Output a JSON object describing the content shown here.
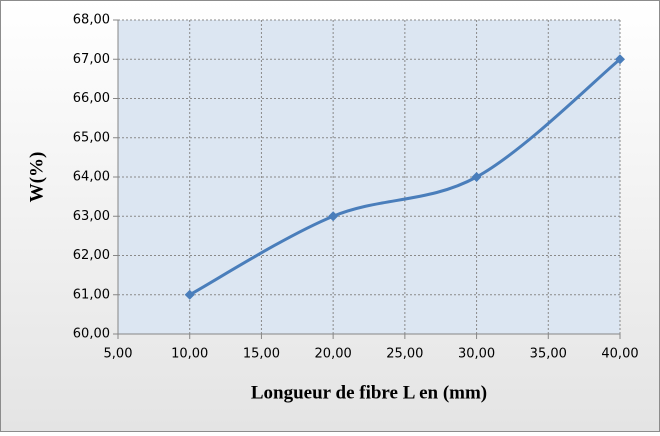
{
  "chart_data": {
    "type": "line",
    "smooth": true,
    "grid": true,
    "x_label": "Longueur de fibre L en  (mm)",
    "y_label": "W(%)",
    "x": [
      10,
      20,
      30,
      40
    ],
    "values": [
      61,
      63,
      64,
      67
    ],
    "color": "#4a7ebb",
    "xlim": [
      5,
      40
    ],
    "xticks": [
      {
        "value": 5,
        "label": "5,00"
      },
      {
        "value": 10,
        "label": "10,00"
      },
      {
        "value": 15,
        "label": "15,00"
      },
      {
        "value": 20,
        "label": "20,00"
      },
      {
        "value": 25,
        "label": "25,00"
      },
      {
        "value": 30,
        "label": "30,00"
      },
      {
        "value": 35,
        "label": "35,00"
      },
      {
        "value": 40,
        "label": "40,00"
      }
    ],
    "ylim": [
      60,
      68
    ],
    "yticks": [
      {
        "value": 60,
        "label": "60,00"
      },
      {
        "value": 61,
        "label": "61,00"
      },
      {
        "value": 62,
        "label": "62,00"
      },
      {
        "value": 63,
        "label": "63,00"
      },
      {
        "value": 64,
        "label": "64,00"
      },
      {
        "value": 65,
        "label": "65,00"
      },
      {
        "value": 66,
        "label": "66,00"
      },
      {
        "value": 67,
        "label": "67,00"
      },
      {
        "value": 68,
        "label": "68,00"
      }
    ]
  }
}
